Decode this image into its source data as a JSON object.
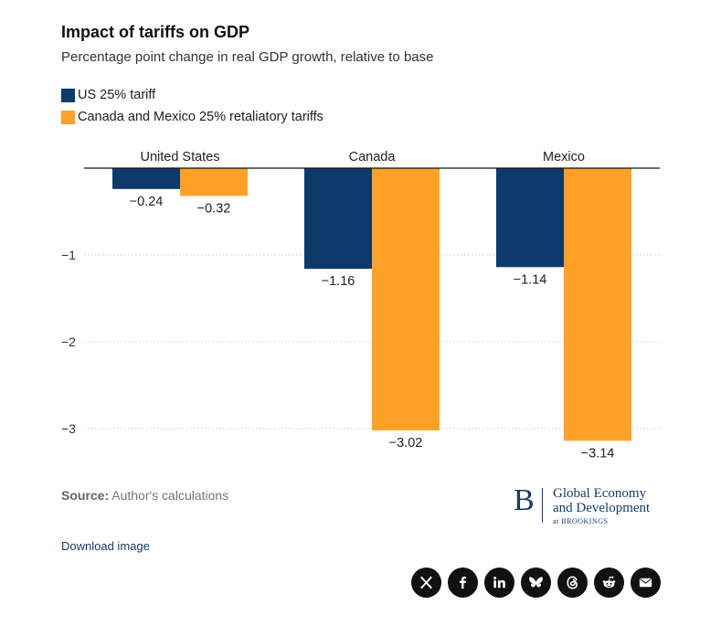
{
  "header": {
    "title": "Impact of tariffs on GDP",
    "subtitle": "Percentage point change in real GDP growth, relative to base"
  },
  "legend": [
    {
      "label": "US 25% tariff",
      "color": "#0d3a6b"
    },
    {
      "label": "Canada and Mexico 25% retaliatory tariffs",
      "color": "#ffa126"
    }
  ],
  "chart_data": {
    "type": "bar",
    "title": "Impact of tariffs on GDP",
    "subtitle": "Percentage point change in real GDP growth, relative to base",
    "categories": [
      "United States",
      "Canada",
      "Mexico"
    ],
    "series": [
      {
        "name": "US 25% tariff",
        "values": [
          -0.24,
          -1.16,
          -1.14
        ],
        "labels": [
          "−0.24",
          "−1.16",
          "−1.14"
        ],
        "color": "#0d3a6b"
      },
      {
        "name": "Canada and Mexico 25% retaliatory tariffs",
        "values": [
          -0.32,
          -3.02,
          -3.14
        ],
        "labels": [
          "−0.32",
          "−3.02",
          "−3.14"
        ],
        "color": "#ffa126"
      }
    ],
    "yticks": [
      -1,
      -2,
      -3
    ],
    "ytick_labels": [
      "−1",
      "−2",
      "−3"
    ],
    "ylim": [
      -3.3,
      0
    ],
    "xlabel": "",
    "ylabel": "",
    "grid": true,
    "legend_position": "top-left"
  },
  "source": {
    "prefix": "Source:",
    "text": "Author's calculations"
  },
  "logo": {
    "letter": "B",
    "line1": "Global Economy",
    "line2": "and Development",
    "line3": "at BROOKINGS"
  },
  "download_label": "Download image",
  "share_icons": [
    "x-icon",
    "facebook-icon",
    "linkedin-icon",
    "bluesky-icon",
    "threads-icon",
    "reddit-icon",
    "email-icon"
  ]
}
